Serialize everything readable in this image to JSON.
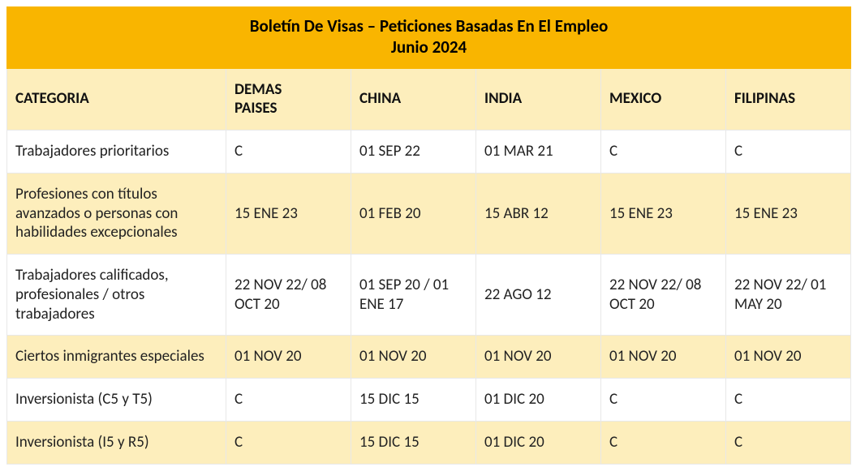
{
  "colors": {
    "title_bg": "#f9b500",
    "header_bg": "#fdeebc",
    "alt_row_bg": "#fdeebc",
    "white_row_bg": "#ffffff",
    "border": "#e8e8e8",
    "text": "#222222"
  },
  "fonts": {
    "body_size_pt": 14,
    "title_size_pt": 16,
    "family": "Calibri"
  },
  "title": {
    "line1": "Boletín De Visas – Peticiones Basadas En El Empleo",
    "line2": "Junio 2024"
  },
  "headers": {
    "categoria": "CATEGORIA",
    "demas_paises_l1": "DEMAS",
    "demas_paises_l2": "PAISES",
    "china": "CHINA",
    "india": "INDIA",
    "mexico": "MEXICO",
    "filipinas": "FILIPINAS"
  },
  "rows": [
    {
      "alt": false,
      "cells": [
        "Trabajadores prioritarios",
        "C",
        "01 SEP 22",
        "01 MAR 21",
        "C",
        "C"
      ]
    },
    {
      "alt": true,
      "cells": [
        "Profesiones con títulos avanzados o personas con habilidades excepcionales",
        "15 ENE 23",
        "01 FEB 20",
        "15 ABR 12",
        "15 ENE 23",
        "15 ENE 23"
      ]
    },
    {
      "alt": false,
      "cells": [
        "Trabajadores calificados, profesionales / otros trabajadores",
        "22 NOV 22/ 08 OCT 20",
        "01 SEP 20 / 01 ENE 17",
        "22 AGO 12",
        "22 NOV 22/ 08 OCT 20",
        "22 NOV 22/ 01 MAY 20"
      ]
    },
    {
      "alt": true,
      "cells": [
        "Ciertos inmigrantes especiales",
        "01 NOV 20",
        "01 NOV 20",
        "01 NOV 20",
        "01 NOV 20",
        "01 NOV 20"
      ]
    },
    {
      "alt": false,
      "cells": [
        "Inversionista (C5 y T5)",
        "C",
        "15 DIC 15",
        "01 DIC 20",
        "C",
        "C"
      ]
    },
    {
      "alt": true,
      "cells": [
        "Inversionista (I5 y R5)",
        "C",
        "15 DIC 15",
        "01 DIC 20",
        "C",
        "C"
      ]
    }
  ]
}
